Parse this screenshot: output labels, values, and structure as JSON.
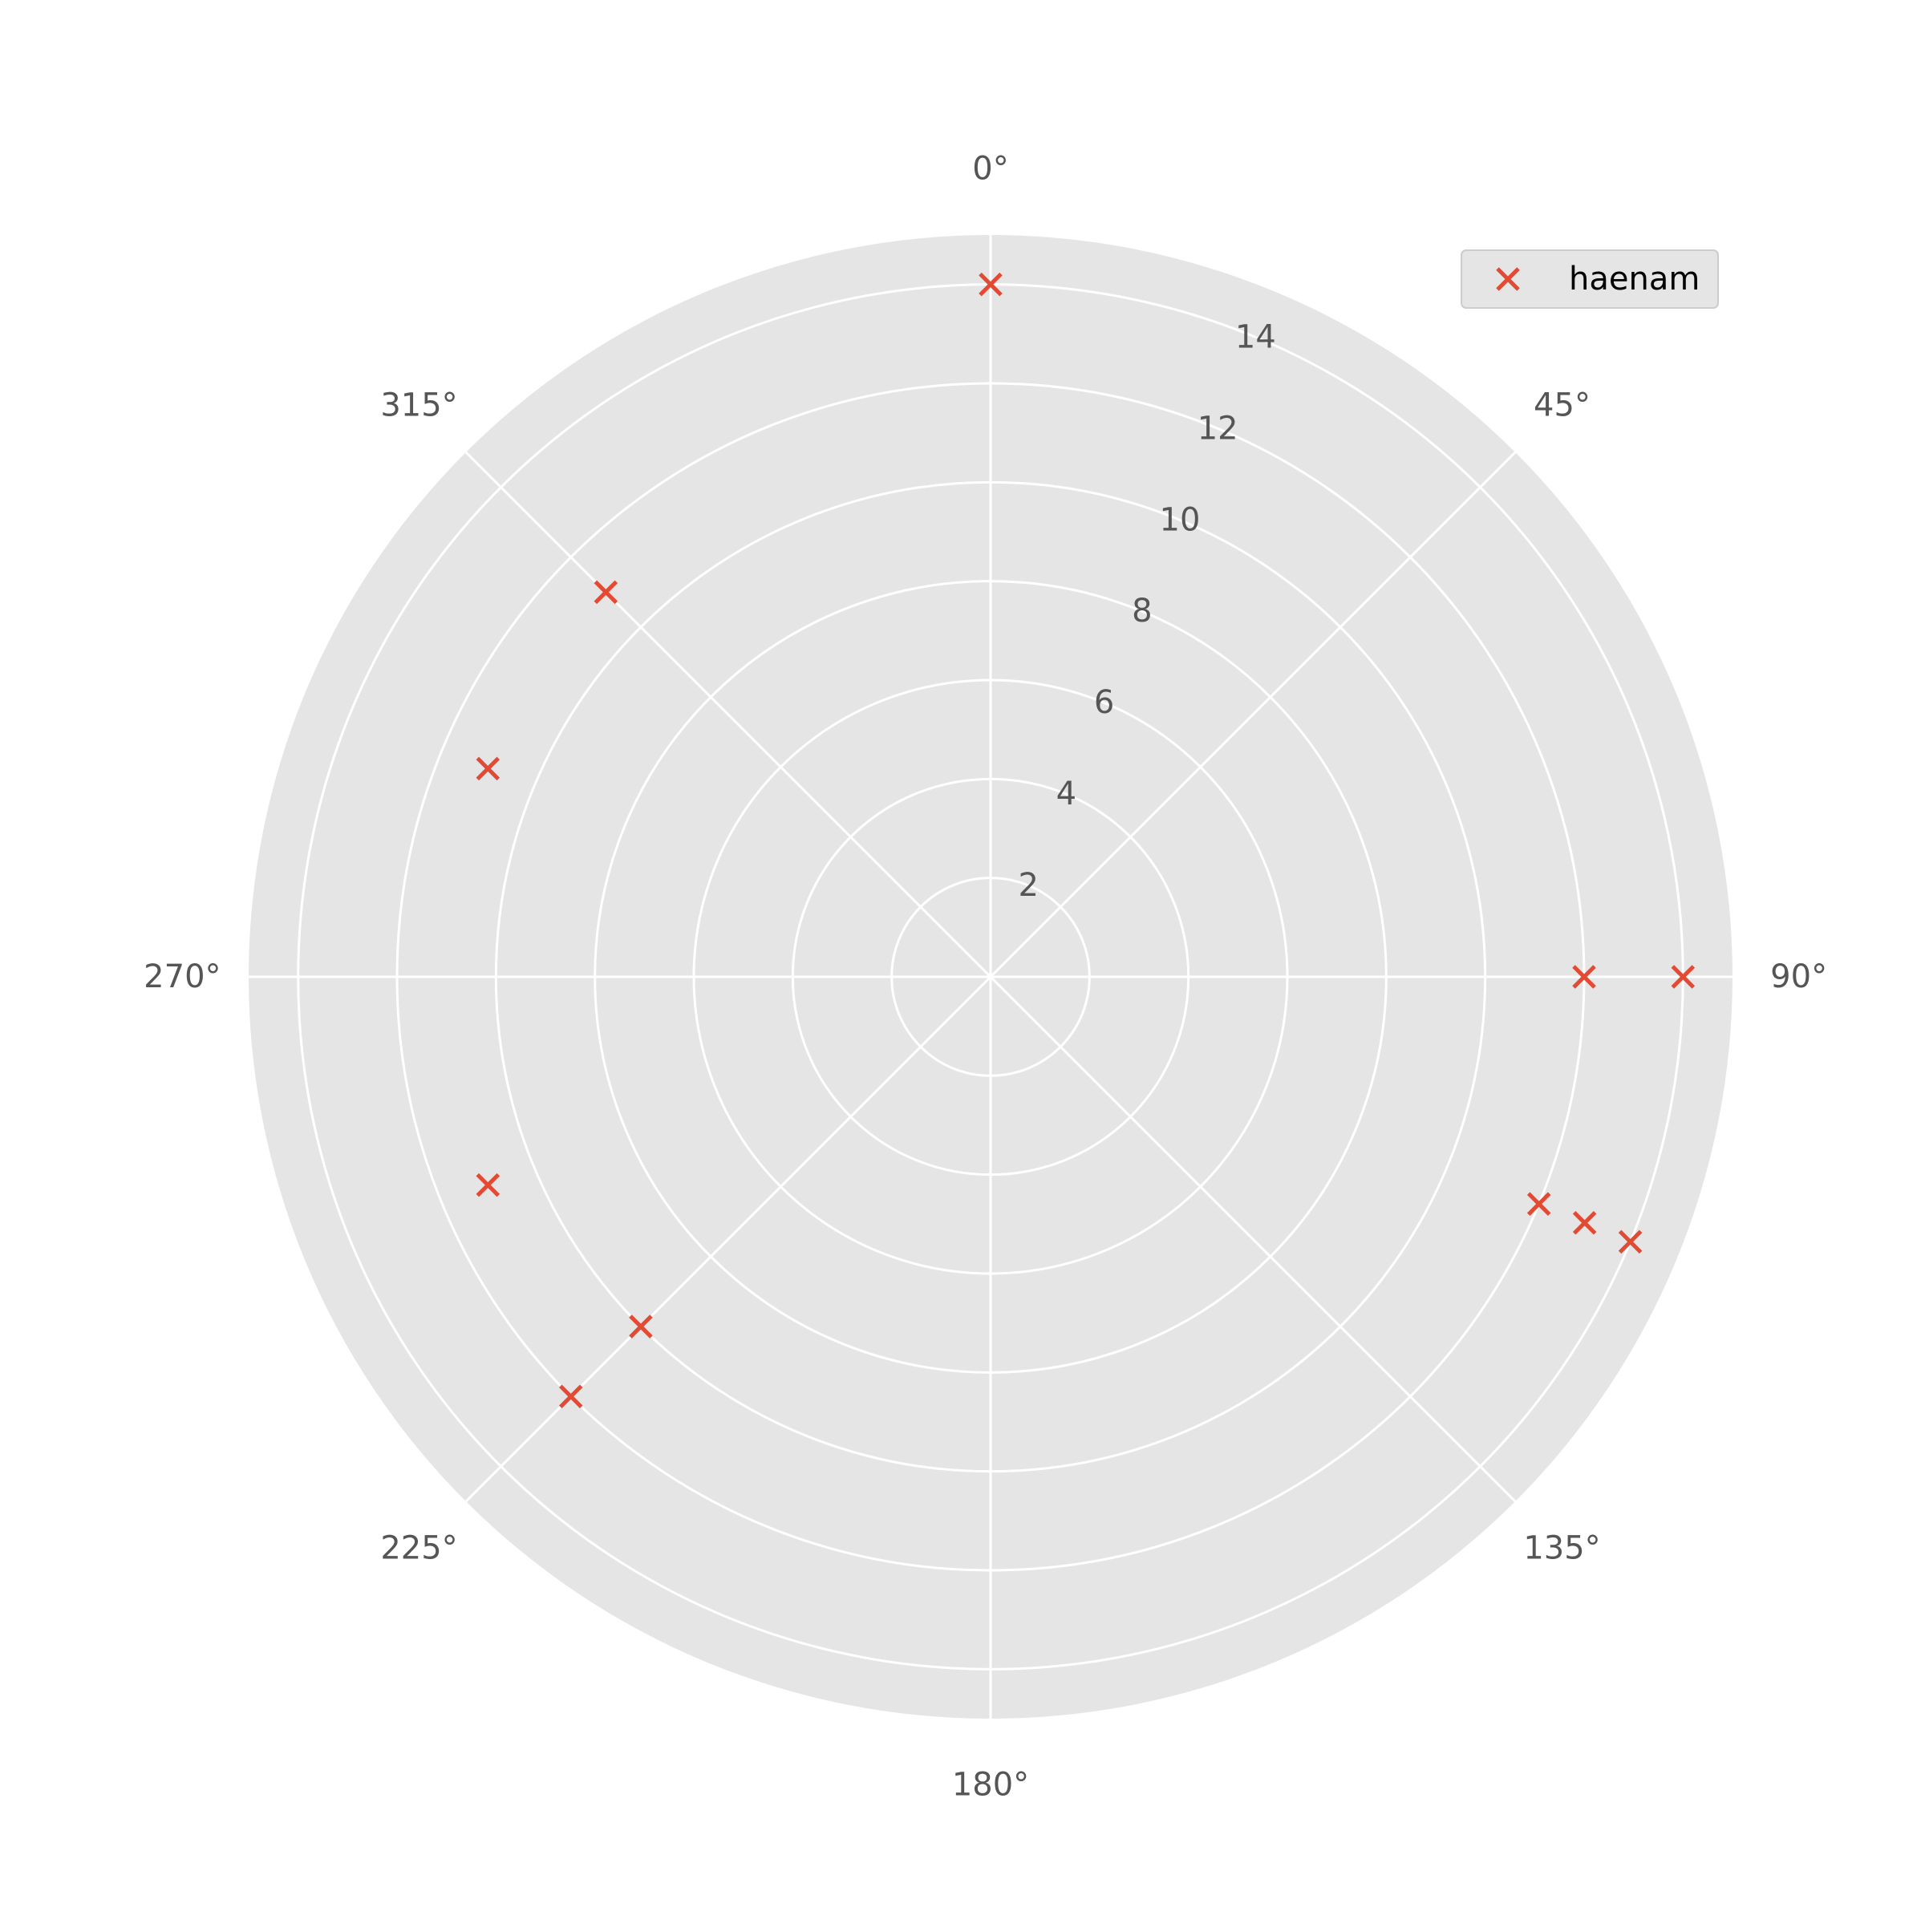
{
  "chart_data": {
    "type": "scatter",
    "projection": "polar",
    "theta_direction": "clockwise",
    "theta_zero_location": "top",
    "angle_unit": "degrees",
    "theta_tick_labels": [
      "0°",
      "45°",
      "90°",
      "135°",
      "180°",
      "225°",
      "270°",
      "315°"
    ],
    "theta_ticks": [
      0,
      45,
      90,
      135,
      180,
      225,
      270,
      315
    ],
    "r_tick_labels": [
      "2",
      "4",
      "6",
      "8",
      "10",
      "12",
      "14"
    ],
    "r_ticks": [
      2,
      4,
      6,
      8,
      10,
      12,
      14
    ],
    "rlim": [
      0,
      15
    ],
    "grid": true,
    "legend_position": "top-right",
    "colors": {
      "axes_background": "#e5e5e5",
      "grid": "#ffffff",
      "marker": "#e24a33",
      "tick_label": "#555555",
      "legend_background": "#e5e5e5",
      "legend_border": "#cccccc",
      "legend_text": "#000000"
    },
    "marker": "x",
    "series": [
      {
        "name": "haenam",
        "points": [
          {
            "theta": 0,
            "r": 14
          },
          {
            "theta": 90,
            "r": 12
          },
          {
            "theta": 90,
            "r": 14
          },
          {
            "theta": 112.5,
            "r": 12
          },
          {
            "theta": 112.5,
            "r": 13
          },
          {
            "theta": 112.5,
            "r": 14
          },
          {
            "theta": 225,
            "r": 10
          },
          {
            "theta": 225,
            "r": 12
          },
          {
            "theta": 247.5,
            "r": 11
          },
          {
            "theta": 292.5,
            "r": 11
          },
          {
            "theta": 315,
            "r": 11
          }
        ]
      }
    ]
  }
}
